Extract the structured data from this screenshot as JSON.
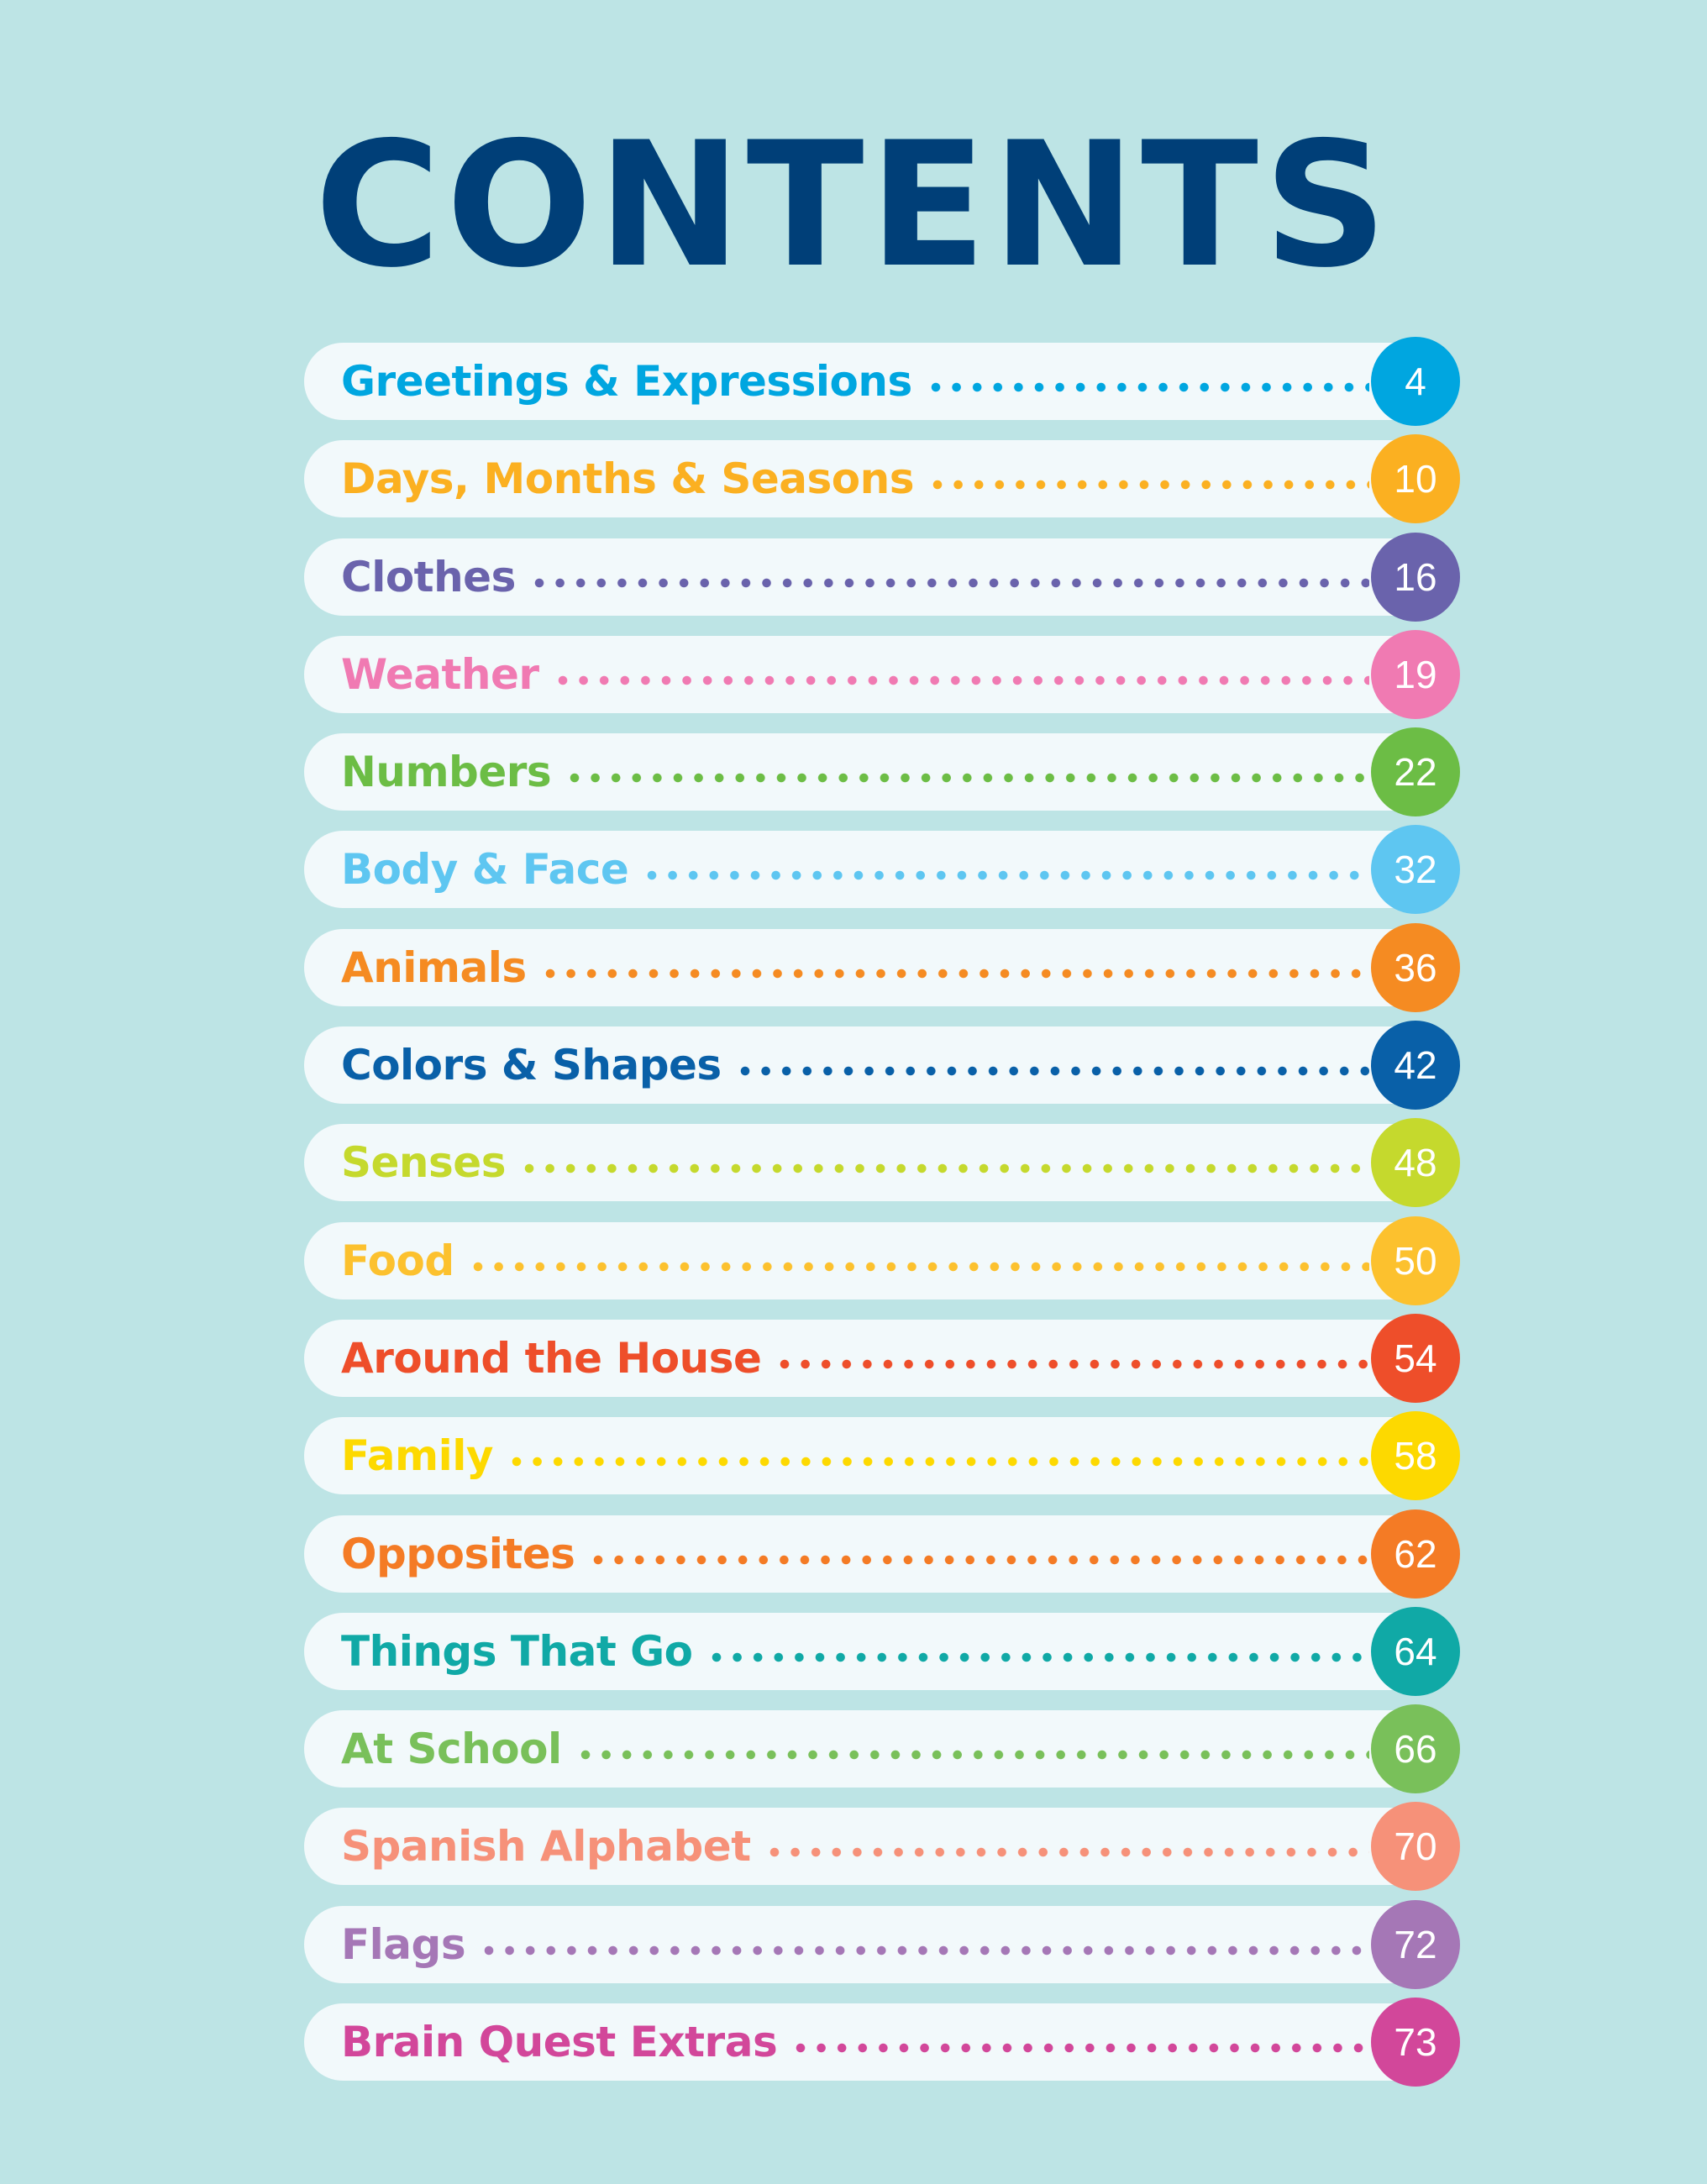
{
  "title": "CONTENTS",
  "entries": [
    {
      "label": "Greetings & Expressions",
      "page": "4",
      "color": "#00a6e0"
    },
    {
      "label": "Days, Months & Seasons",
      "page": "10",
      "color": "#fbb021"
    },
    {
      "label": "Clothes",
      "page": "16",
      "color": "#6a63ac"
    },
    {
      "label": "Weather",
      "page": "19",
      "color": "#f07ab2"
    },
    {
      "label": "Numbers",
      "page": "22",
      "color": "#6cbd45"
    },
    {
      "label": "Body & Face",
      "page": "32",
      "color": "#5ec6f1"
    },
    {
      "label": "Animals",
      "page": "36",
      "color": "#f58b22"
    },
    {
      "label": "Colors & Shapes",
      "page": "42",
      "color": "#0960a8"
    },
    {
      "label": "Senses",
      "page": "48",
      "color": "#c5d92d"
    },
    {
      "label": "Food",
      "page": "50",
      "color": "#fcc12e"
    },
    {
      "label": "Around the House",
      "page": "54",
      "color": "#ee4e2a"
    },
    {
      "label": "Family",
      "page": "58",
      "color": "#fdd900"
    },
    {
      "label": "Opposites",
      "page": "62",
      "color": "#f47b25"
    },
    {
      "label": "Things That Go",
      "page": "64",
      "color": "#10a9a6"
    },
    {
      "label": "At School",
      "page": "66",
      "color": "#79c05a"
    },
    {
      "label": "Spanish Alphabet",
      "page": "70",
      "color": "#f69179"
    },
    {
      "label": "Flags",
      "page": "72",
      "color": "#a577b6"
    },
    {
      "label": "Brain Quest Extras",
      "page": "73",
      "color": "#d2479a"
    }
  ]
}
